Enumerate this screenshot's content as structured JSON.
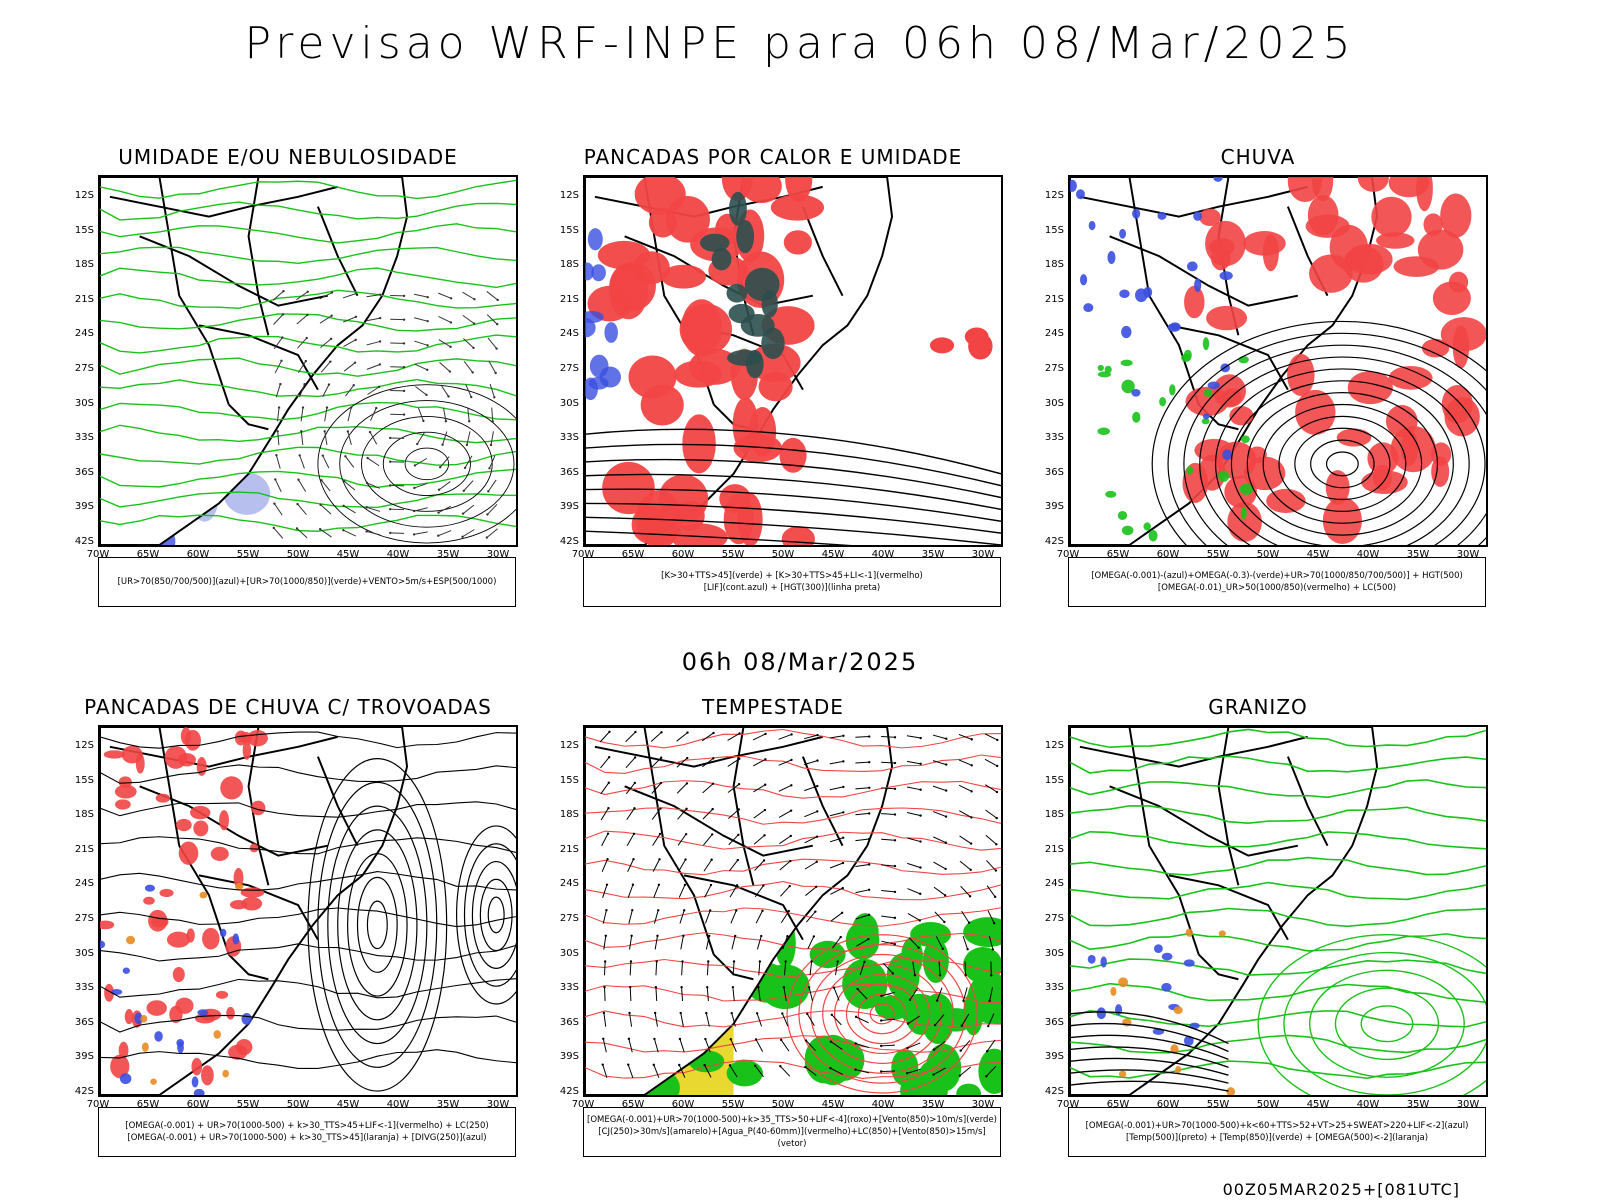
{
  "main_title": "Previsao WRF-INPE  para 06h 08/Mar/2025",
  "mid_title": "06h 08/Mar/2025",
  "footer": "00Z05MAR2025+[081UTC]",
  "lat_labels": [
    "12S",
    "15S",
    "18S",
    "21S",
    "24S",
    "27S",
    "30S",
    "33S",
    "36S",
    "39S",
    "42S"
  ],
  "lon_labels": [
    "70W",
    "65W",
    "60W",
    "55W",
    "50W",
    "45W",
    "40W",
    "35W",
    "30W"
  ],
  "colors": {
    "blue": "#3a4fe0",
    "lightblue": "#aab4ec",
    "green": "#19c219",
    "red": "#f24444",
    "darkteal": "#2c4f4f",
    "yellow": "#e8d830",
    "orange": "#e88a20"
  },
  "panels": [
    {
      "title": "UMIDADE E/OU NEBULOSIDADE",
      "legend": [
        "[UR>70(850/700/500)](azul)+[UR>70(1000/850)](verde)+VENTO>5m/s+ESP(500/1000)"
      ]
    },
    {
      "title": "PANCADAS POR CALOR E UMIDADE",
      "legend": [
        "[K>30+TTS>45](verde)  +  [K>30+TTS>45+LI<-1](vermelho)",
        "[LIF](cont.azul)  +  [HGT(300)](linha preta)"
      ]
    },
    {
      "title": "CHUVA",
      "legend": [
        "[OMEGA(-0.001)-(azul)+OMEGA(-0.3)-(verde)+UR>70(1000/850/700/500)]  +  HGT(500)",
        "[OMEGA(-0.01)_UR>50(1000/850)(vermelho)  +  LC(500)"
      ]
    },
    {
      "title": "PANCADAS DE CHUVA C/ TROVOADAS",
      "legend": [
        "[OMEGA(-0.001)  +  UR>70(1000-500)  +  k>30_TTS>45+LIF<-1](vermelho)  +  LC(250)",
        "[OMEGA(-0.001)  +  UR>70(1000-500)  +  k>30_TTS>45](laranja)  +  [DIVG(250)](azul)"
      ]
    },
    {
      "title": "TEMPESTADE",
      "legend": [
        "[OMEGA(-0.001)+UR>70(1000-500)+k>35_TTS>50+LIF<-4](roxo)+[Vento(850)>10m/s](verde)",
        "[CJ(250)>30m/s](amarelo)+[Agua_P(40-60mm)](vermelho)+LC(850)+[Vento(850)>15m/s](vetor)"
      ]
    },
    {
      "title": "GRANIZO",
      "legend": [
        "[OMEGA(-0.001)+UR>70(1000-500)+k<60+TTS>52+VT>25+SWEAT>220+LIF<-2](azul)",
        "[Temp(500)](preto)  +  [Temp(850)](verde)  +  [OMEGA(500)<-2](laranja)"
      ]
    }
  ]
}
